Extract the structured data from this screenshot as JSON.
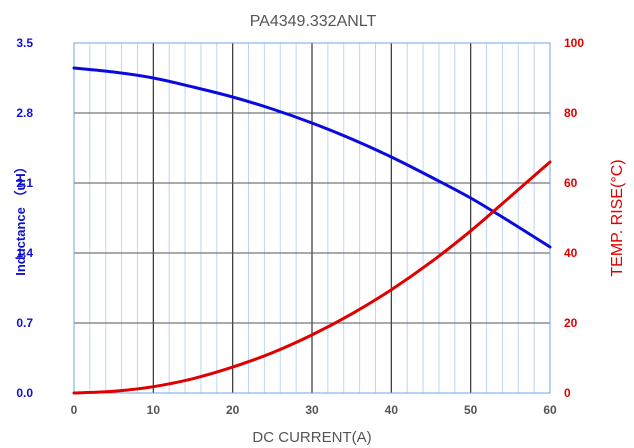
{
  "chart_data": {
    "type": "line",
    "title": "PA4349.332ANLT",
    "xlabel": "DC CURRENT(A)",
    "ylabel_left": "Inductance （uH）",
    "ylabel_right": "TEMP. RISE(°C)",
    "xlim": [
      0,
      60
    ],
    "ylim_left": [
      0,
      3.5
    ],
    "ylim_right": [
      0,
      100
    ],
    "x_ticks": [
      0,
      10,
      20,
      30,
      40,
      50,
      60
    ],
    "y_left_ticks": [
      "0.0",
      "0.7",
      "1.4",
      "2.1",
      "2.8",
      "3.5"
    ],
    "y_right_ticks": [
      "0",
      "20",
      "40",
      "60",
      "80",
      "100"
    ],
    "grid": true,
    "series": [
      {
        "axis": "left",
        "color": "#0a0ae0",
        "x": [
          0,
          5,
          10,
          15,
          20,
          25,
          30,
          35,
          40,
          45,
          50,
          55,
          60
        ],
        "values": [
          3.25,
          3.21,
          3.15,
          3.06,
          2.96,
          2.84,
          2.7,
          2.54,
          2.36,
          2.16,
          1.95,
          1.71,
          1.46
        ]
      },
      {
        "axis": "right",
        "color": "#e00000",
        "x": [
          0,
          5,
          10,
          15,
          20,
          25,
          30,
          35,
          40,
          45,
          50,
          55,
          60
        ],
        "values": [
          0,
          0.5,
          1.8,
          4.1,
          7.4,
          11.5,
          16.6,
          22.6,
          29.5,
          37.4,
          46.3,
          56.1,
          66.0
        ]
      }
    ]
  }
}
